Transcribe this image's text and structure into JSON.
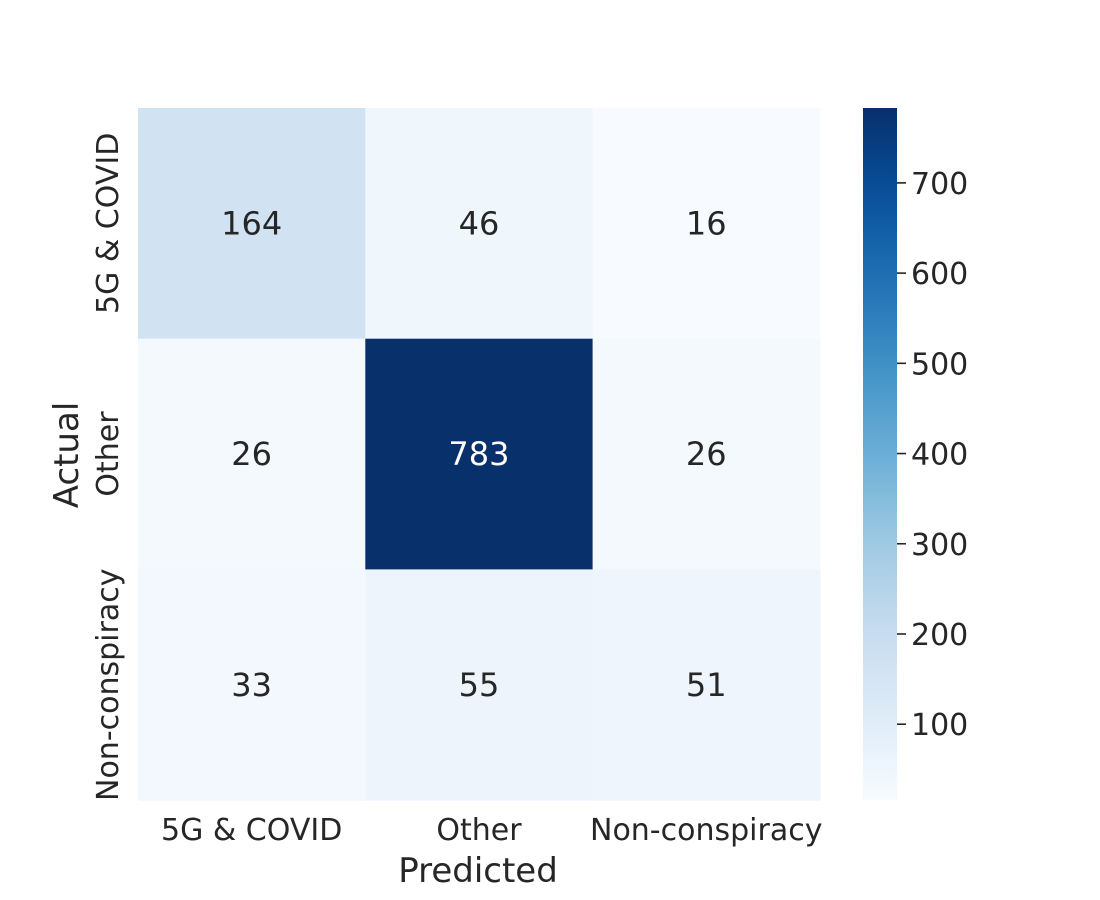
{
  "chart_data": {
    "type": "heatmap",
    "title": "",
    "xlabel": "Predicted",
    "ylabel": "Actual",
    "x_categories": [
      "5G & COVID",
      "Other",
      "Non-conspiracy"
    ],
    "y_categories": [
      "5G & COVID",
      "Other",
      "Non-conspiracy"
    ],
    "values": [
      [
        164,
        46,
        16
      ],
      [
        26,
        783,
        26
      ],
      [
        33,
        55,
        51
      ]
    ],
    "colormap": "Blues",
    "vmin": 16,
    "vmax": 783,
    "colorbar_ticks": [
      100,
      200,
      300,
      400,
      500,
      600,
      700
    ],
    "annotated": true,
    "colorbar": true
  }
}
